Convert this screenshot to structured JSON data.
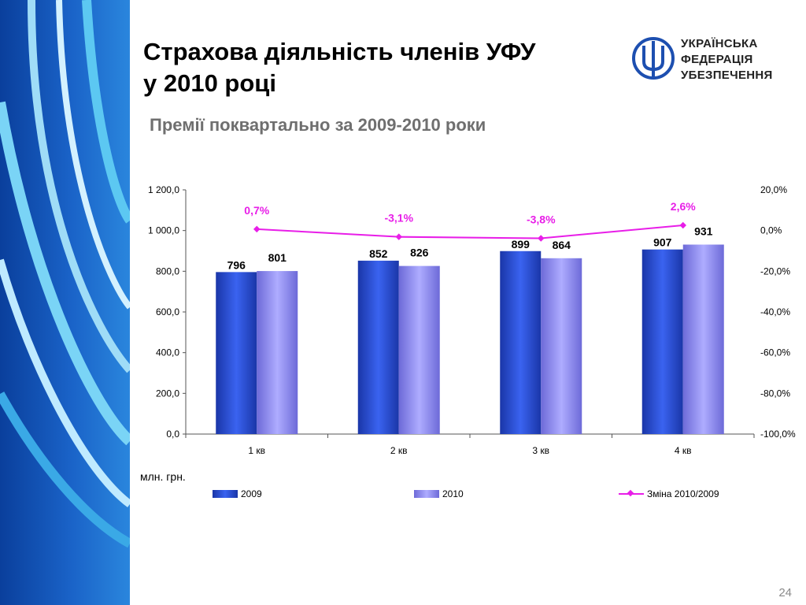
{
  "slide": {
    "title_line1": "Страхова діяльність членів УФУ",
    "title_line2": "у 2010 році",
    "subtitle": "Премії поквартально за 2009-2010 роки",
    "unit": "млн. грн.",
    "page_number": "24"
  },
  "logo": {
    "line1": "УКРАЇНСЬКА",
    "line2": "ФЕДЕРАЦІЯ",
    "line3": "УБЕЗПЕЧЕННЯ",
    "icon": "trident-icon",
    "color": "#1d4fb0"
  },
  "colors": {
    "bar_2009": "#2448d8",
    "bar_2010": "#8f8cf0",
    "line": "#e81ee8",
    "deco_dark": "#0a3f9c",
    "deco_light": "#2ab0e8"
  },
  "chart_data": {
    "type": "bar",
    "categories": [
      "1 кв",
      "2 кв",
      "3 кв",
      "4 кв"
    ],
    "series": [
      {
        "name": "2009",
        "values": [
          796,
          852,
          899,
          907
        ],
        "labels": [
          "796",
          "852",
          "899",
          "907"
        ]
      },
      {
        "name": "2010",
        "values": [
          801,
          826,
          864,
          931
        ],
        "labels": [
          "801",
          "826",
          "864",
          "931"
        ]
      }
    ],
    "line_series": {
      "name": "Зміна 2010/2009",
      "axis": "right",
      "values": [
        0.7,
        -3.1,
        -3.8,
        2.6
      ],
      "labels": [
        "0,7%",
        "-3,1%",
        "-3,8%",
        "2,6%"
      ]
    },
    "y_left": {
      "min": 0,
      "max": 1200,
      "ticks": [
        "0,0",
        "200,0",
        "400,0",
        "600,0",
        "800,0",
        "1 000,0",
        "1 200,0"
      ]
    },
    "y_right": {
      "min": -100,
      "max": 20,
      "ticks": [
        "-100,0%",
        "-80,0%",
        "-60,0%",
        "-40,0%",
        "-20,0%",
        "0,0%",
        "20,0%"
      ]
    },
    "grid": false,
    "legend_position": "bottom"
  }
}
